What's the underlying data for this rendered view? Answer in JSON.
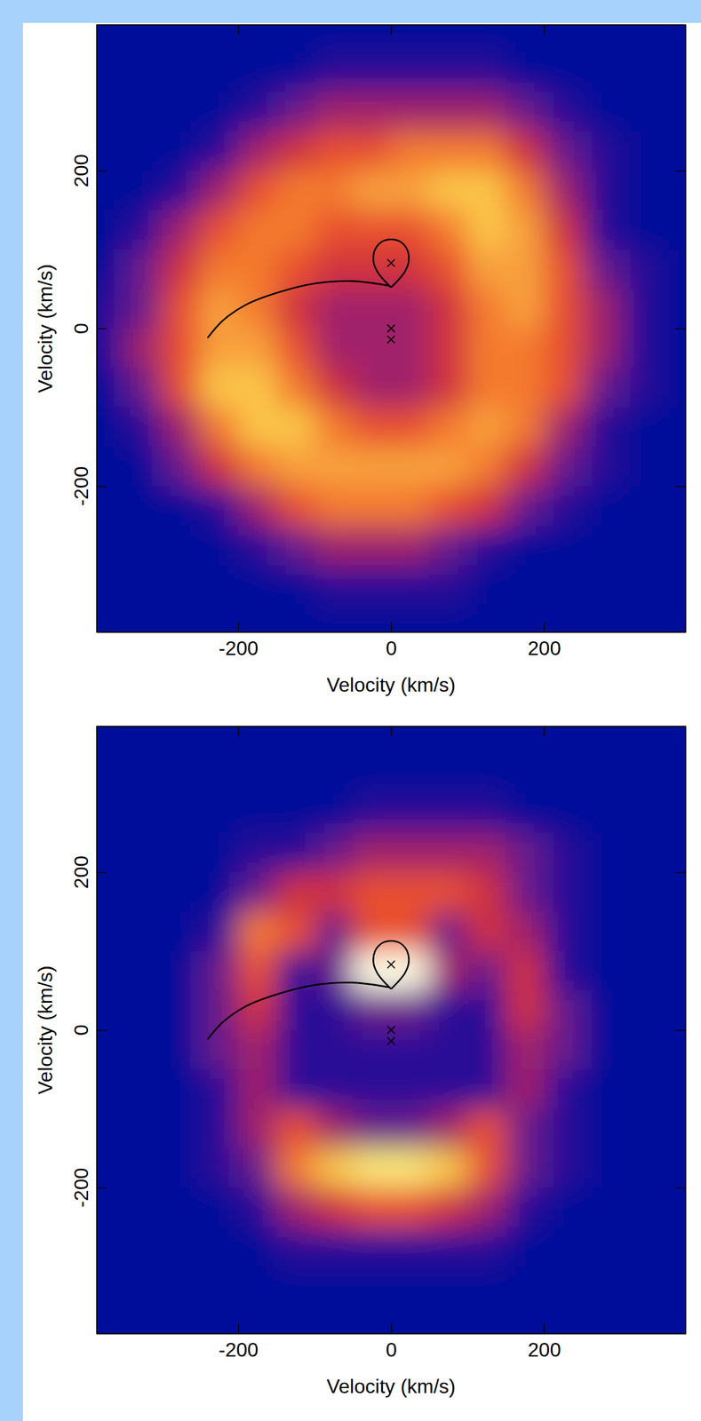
{
  "chart_data": [
    {
      "type": "heatmap",
      "xlabel": "Velocity (km/s)",
      "ylabel": "Velocity (km/s)",
      "xlim": [
        -385,
        385
      ],
      "ylim": [
        -385,
        385
      ],
      "xticks": [
        -200,
        0,
        200
      ],
      "yticks": [
        -200,
        0,
        200
      ],
      "zlim": [
        0,
        10
      ],
      "x": [
        -375,
        -325,
        -275,
        -225,
        -175,
        -125,
        -75,
        -25,
        25,
        75,
        125,
        175,
        225,
        275,
        325,
        375
      ],
      "y": [
        375,
        325,
        275,
        225,
        175,
        125,
        75,
        25,
        -25,
        -75,
        -125,
        -175,
        -225,
        -275,
        -325,
        -375
      ],
      "z": [
        [
          0,
          0,
          0,
          0,
          0,
          0,
          0,
          0,
          0,
          0,
          0,
          0,
          0,
          0,
          0,
          0
        ],
        [
          0,
          0,
          0,
          0,
          0,
          0,
          1,
          1,
          1,
          1,
          1,
          0,
          0,
          0,
          0,
          0
        ],
        [
          0,
          0,
          0,
          0,
          1,
          2,
          3,
          3,
          3,
          3,
          3,
          2,
          1,
          0,
          0,
          0
        ],
        [
          0,
          0,
          0,
          1,
          3,
          4,
          5,
          5,
          6,
          6,
          6,
          4,
          2,
          1,
          0,
          0
        ],
        [
          0,
          0,
          1,
          3,
          5,
          6,
          6,
          7,
          7,
          8,
          8,
          6,
          3,
          1,
          0,
          0
        ],
        [
          0,
          1,
          3,
          5,
          6,
          6,
          5,
          5,
          5,
          6,
          8,
          7,
          4,
          1,
          0,
          0
        ],
        [
          0,
          2,
          4,
          6,
          6,
          5,
          4,
          4,
          4,
          5,
          7,
          7,
          5,
          2,
          1,
          0
        ],
        [
          1,
          2,
          5,
          7,
          6,
          4,
          3,
          3,
          3,
          4,
          6,
          7,
          5,
          3,
          1,
          0
        ],
        [
          1,
          3,
          5,
          7,
          7,
          5,
          3,
          3,
          3,
          4,
          6,
          6,
          5,
          3,
          1,
          0
        ],
        [
          0,
          2,
          5,
          8,
          8,
          6,
          4,
          3,
          3,
          4,
          6,
          6,
          5,
          2,
          1,
          0
        ],
        [
          0,
          1,
          3,
          6,
          8,
          8,
          6,
          5,
          5,
          6,
          7,
          6,
          3,
          1,
          0,
          0
        ],
        [
          0,
          0,
          2,
          4,
          6,
          7,
          7,
          7,
          7,
          7,
          6,
          4,
          2,
          1,
          0,
          0
        ],
        [
          0,
          0,
          0,
          1,
          3,
          5,
          6,
          6,
          6,
          5,
          4,
          2,
          1,
          0,
          0,
          0
        ],
        [
          0,
          0,
          0,
          0,
          1,
          2,
          3,
          3,
          3,
          2,
          1,
          0,
          0,
          0,
          0,
          0
        ],
        [
          0,
          0,
          0,
          0,
          0,
          0,
          1,
          1,
          1,
          1,
          0,
          0,
          0,
          0,
          0,
          0
        ],
        [
          0,
          0,
          0,
          0,
          0,
          0,
          0,
          0,
          0,
          0,
          0,
          0,
          0,
          0,
          0,
          0
        ]
      ],
      "roche_lobe": {
        "x": [
          0,
          -10,
          -18,
          -23,
          -21,
          -12,
          0,
          12,
          21,
          23,
          18,
          10,
          0
        ],
        "y": [
          52,
          62,
          72,
          85,
          100,
          110,
          113,
          110,
          100,
          85,
          72,
          62,
          52
        ]
      },
      "stream": {
        "x": [
          -2,
          -50,
          -100,
          -150,
          -190,
          -220,
          -240
        ],
        "y": [
          54,
          60,
          57,
          45,
          30,
          10,
          -12
        ]
      },
      "markers": {
        "x": [
          0,
          0,
          0
        ],
        "y": [
          83,
          0,
          -14
        ]
      }
    },
    {
      "type": "heatmap",
      "xlabel": "Velocity (km/s)",
      "ylabel": "Velocity (km/s)",
      "xlim": [
        -385,
        385
      ],
      "ylim": [
        -385,
        385
      ],
      "xticks": [
        -200,
        0,
        200
      ],
      "yticks": [
        -200,
        0,
        200
      ],
      "zlim": [
        0,
        10
      ],
      "x": [
        -375,
        -325,
        -275,
        -225,
        -175,
        -125,
        -75,
        -25,
        25,
        75,
        125,
        175,
        225,
        275,
        325,
        375
      ],
      "y": [
        375,
        325,
        275,
        225,
        175,
        125,
        75,
        25,
        -25,
        -75,
        -125,
        -175,
        -225,
        -275,
        -325,
        -375
      ],
      "z": [
        [
          0,
          0,
          0,
          0,
          0,
          0,
          0,
          0,
          0,
          0,
          0,
          0,
          0,
          0,
          0,
          0
        ],
        [
          0,
          0,
          0,
          0,
          0,
          0,
          0,
          0,
          0,
          0,
          0,
          0,
          0,
          0,
          0,
          0
        ],
        [
          0,
          0,
          0,
          0,
          0,
          0,
          0,
          1,
          1,
          1,
          1,
          0,
          0,
          0,
          0,
          0
        ],
        [
          0,
          0,
          0,
          0,
          1,
          1,
          2,
          3,
          3,
          3,
          3,
          2,
          1,
          0,
          0,
          0
        ],
        [
          0,
          0,
          0,
          0,
          2,
          4,
          4,
          5,
          5,
          5,
          4,
          2,
          1,
          0,
          0,
          0
        ],
        [
          0,
          0,
          0,
          1,
          6,
          5,
          2,
          5,
          5,
          2,
          4,
          3,
          1,
          0,
          0,
          0
        ],
        [
          0,
          0,
          0,
          2,
          5,
          1,
          2,
          10,
          10,
          3,
          2,
          4,
          1,
          0,
          0,
          0
        ],
        [
          0,
          0,
          0,
          2,
          4,
          1,
          1,
          2,
          2,
          1,
          1,
          4,
          2,
          0,
          0,
          0
        ],
        [
          0,
          0,
          0,
          2,
          3,
          1,
          1,
          1,
          1,
          1,
          1,
          3,
          2,
          0,
          0,
          0
        ],
        [
          0,
          0,
          0,
          1,
          3,
          1,
          1,
          1,
          1,
          1,
          1,
          3,
          1,
          0,
          0,
          0
        ],
        [
          0,
          0,
          0,
          1,
          3,
          5,
          3,
          2,
          2,
          3,
          5,
          2,
          1,
          0,
          0,
          0
        ],
        [
          0,
          0,
          0,
          1,
          2,
          6,
          8,
          9,
          9,
          8,
          5,
          2,
          1,
          0,
          0,
          0
        ],
        [
          0,
          0,
          0,
          0,
          1,
          3,
          4,
          5,
          5,
          4,
          3,
          1,
          0,
          0,
          0,
          0
        ],
        [
          0,
          0,
          0,
          0,
          0,
          1,
          1,
          1,
          1,
          1,
          1,
          0,
          0,
          0,
          0,
          0
        ],
        [
          0,
          0,
          0,
          0,
          0,
          0,
          0,
          0,
          0,
          0,
          0,
          0,
          0,
          0,
          0,
          0
        ],
        [
          0,
          0,
          0,
          0,
          0,
          0,
          0,
          0,
          0,
          0,
          0,
          0,
          0,
          0,
          0,
          0
        ]
      ],
      "roche_lobe": {
        "x": [
          0,
          -10,
          -18,
          -23,
          -21,
          -12,
          0,
          12,
          21,
          23,
          18,
          10,
          0
        ],
        "y": [
          52,
          62,
          72,
          85,
          100,
          110,
          113,
          110,
          100,
          85,
          72,
          62,
          52
        ]
      },
      "stream": {
        "x": [
          -2,
          -50,
          -100,
          -150,
          -190,
          -220,
          -240
        ],
        "y": [
          54,
          60,
          57,
          45,
          30,
          10,
          -12
        ]
      },
      "markers": {
        "x": [
          0,
          0,
          0
        ],
        "y": [
          83,
          0,
          -14
        ]
      }
    }
  ]
}
